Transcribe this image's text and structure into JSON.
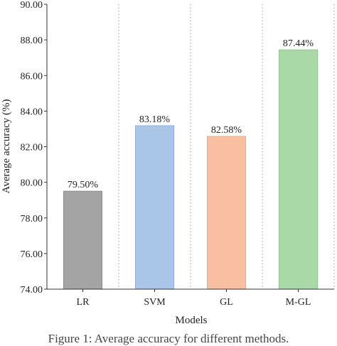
{
  "chart_data": {
    "type": "bar",
    "categories": [
      "LR",
      "SVM",
      "GL",
      "M-GL"
    ],
    "values": [
      79.5,
      83.18,
      82.58,
      87.44
    ],
    "data_labels": [
      "79.50%",
      "83.18%",
      "82.58%",
      "87.44%"
    ],
    "bar_colors": [
      "#a4a4a4",
      "#a9c6e8",
      "#f8bfa0",
      "#a9d9a7"
    ],
    "bar_edge_colors": [
      "#8a8a8a",
      "#8fb0d8",
      "#e8a987",
      "#8ec98c"
    ],
    "xlabel": "Models",
    "ylabel": "Average accuracy (%)",
    "ylim": [
      74,
      90
    ],
    "yticks": [
      "74.00",
      "76.00",
      "78.00",
      "80.00",
      "82.00",
      "84.00",
      "86.00",
      "88.00",
      "90.00"
    ],
    "grid": "vertical dotted",
    "legend": "none"
  },
  "caption": "Figure 1: Average accuracy for different methods."
}
